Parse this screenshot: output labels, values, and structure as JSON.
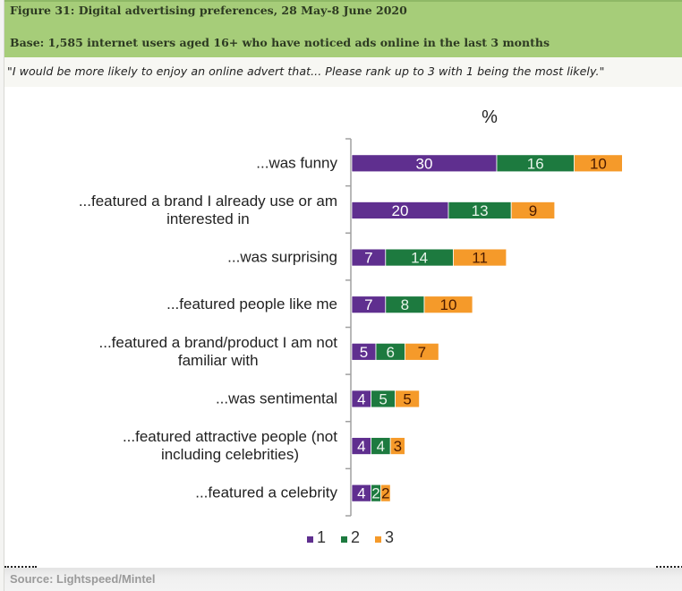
{
  "figure": {
    "title": "Figure 31: Digital advertising preferences, 28 May-8 June 2020",
    "base": "Base: 1,585 internet users aged 16+ who have noticed ads online in the last 3 months",
    "question": "\"I would be more likely to enjoy an online advert that... Please rank up to 3 with 1 being the most likely.\"",
    "source": "Source: Lightspeed/Mintel"
  },
  "chart_data": {
    "type": "bar",
    "orientation": "horizontal",
    "stacked": true,
    "title": "%",
    "xlabel": "",
    "ylabel": "",
    "xlim": [
      0,
      56
    ],
    "grid": false,
    "legend_position": "bottom",
    "categories": [
      [
        "...was funny"
      ],
      [
        "...featured a brand I already use or am",
        "interested in"
      ],
      [
        "...was surprising"
      ],
      [
        "...featured people like me"
      ],
      [
        "...featured a brand/product I am not",
        "familiar with"
      ],
      [
        "...was sentimental"
      ],
      [
        "...featured attractive people (not",
        "including celebrities)"
      ],
      [
        "...featured a celebrity"
      ]
    ],
    "series": [
      {
        "name": "1",
        "color": "#5f2f8f",
        "label_color": "#ffffff",
        "values": [
          30,
          20,
          7,
          7,
          5,
          4,
          4,
          4
        ]
      },
      {
        "name": "2",
        "color": "#1d7a3f",
        "label_color": "#e8f4ea",
        "values": [
          16,
          13,
          14,
          8,
          6,
          5,
          4,
          2
        ]
      },
      {
        "name": "3",
        "color": "#f59a2a",
        "label_color": "#4a1a00",
        "values": [
          10,
          9,
          11,
          10,
          7,
          5,
          3,
          2
        ]
      }
    ]
  },
  "colors": {
    "header_bg": "#a6cd79",
    "axis": "#a0a0a0",
    "category_text": "#222222"
  }
}
